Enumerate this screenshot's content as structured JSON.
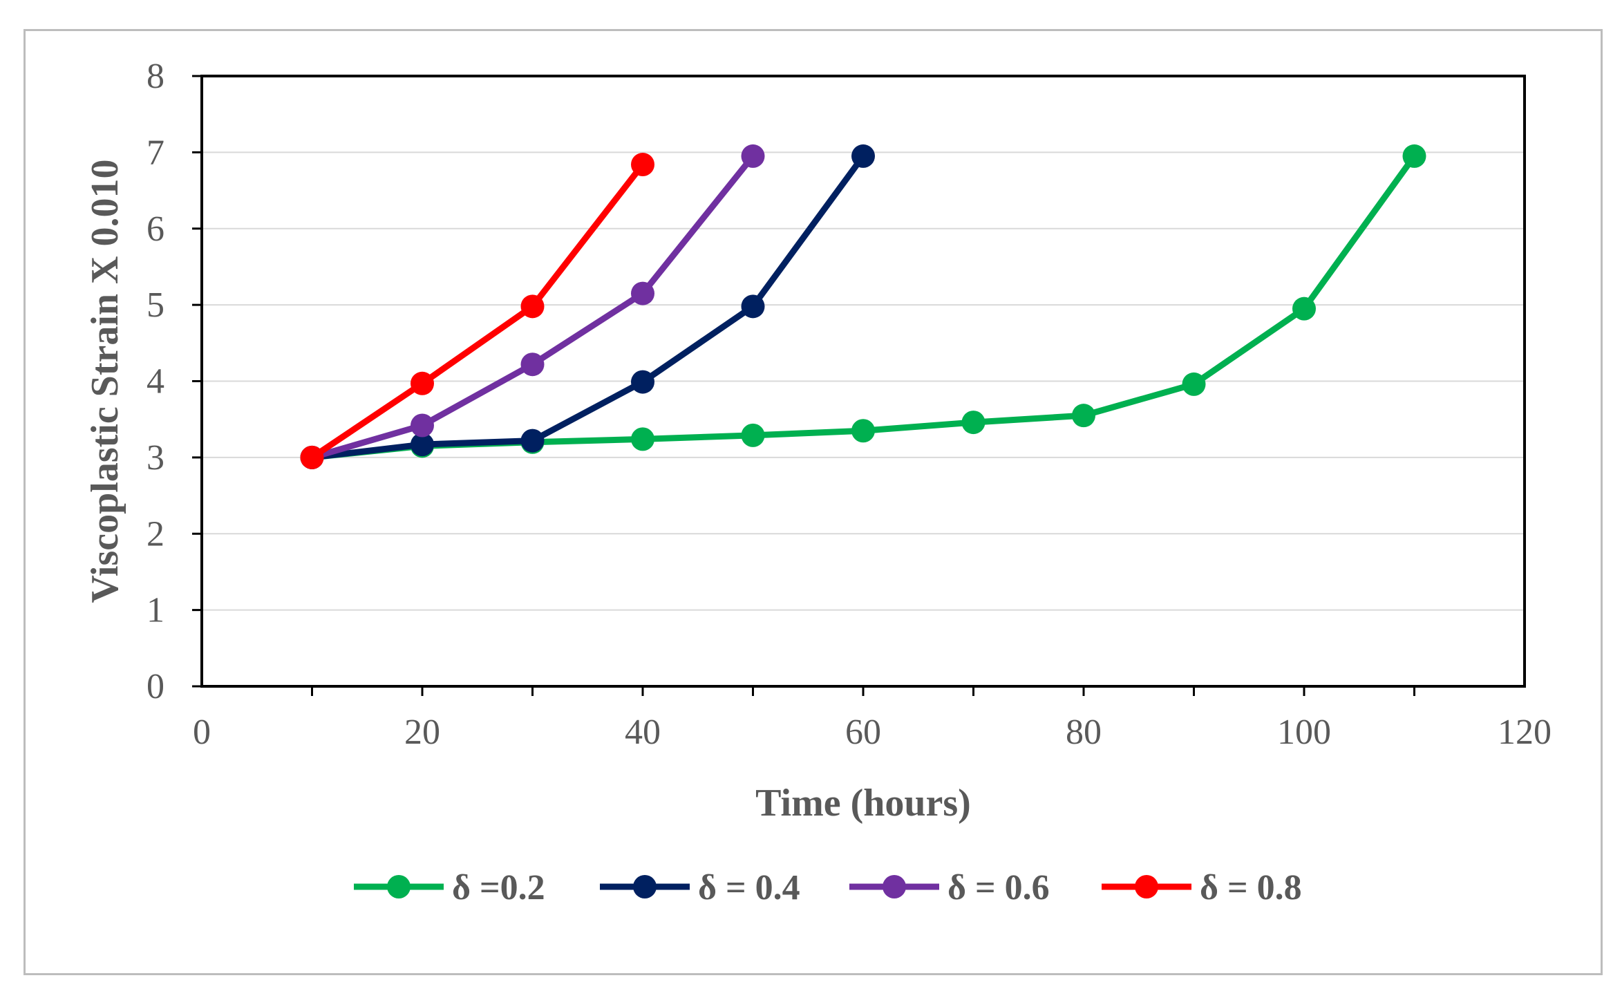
{
  "chart_data": {
    "type": "line",
    "title": "",
    "xlabel": "Time (hours)",
    "ylabel": "Viscoplastic Strain X 0.010",
    "xlim": [
      0,
      120
    ],
    "ylim": [
      0,
      8
    ],
    "x_ticks": [
      0,
      20,
      40,
      60,
      80,
      100,
      120
    ],
    "y_ticks": [
      0,
      1,
      2,
      3,
      4,
      5,
      6,
      7,
      8
    ],
    "grid": "horizontal",
    "legend_position": "bottom",
    "series": [
      {
        "name": "δ =0.2",
        "color": "#00b050",
        "x": [
          10,
          20,
          30,
          40,
          50,
          60,
          70,
          80,
          90,
          100,
          110
        ],
        "y": [
          3.0,
          3.15,
          3.2,
          3.24,
          3.29,
          3.35,
          3.46,
          3.55,
          3.96,
          4.95,
          6.95
        ]
      },
      {
        "name": "δ = 0.4",
        "color": "#002060",
        "x": [
          10,
          20,
          30,
          40,
          50,
          60
        ],
        "y": [
          3.0,
          3.17,
          3.22,
          3.99,
          4.98,
          6.95
        ]
      },
      {
        "name": "δ = 0.6",
        "color": "#7030a0",
        "x": [
          10,
          20,
          30,
          40,
          50
        ],
        "y": [
          3.0,
          3.42,
          4.22,
          5.15,
          6.95
        ]
      },
      {
        "name": "δ = 0.8",
        "color": "#ff0000",
        "x": [
          10,
          20,
          30,
          40
        ],
        "y": [
          3.0,
          3.97,
          4.98,
          6.84
        ]
      }
    ]
  }
}
